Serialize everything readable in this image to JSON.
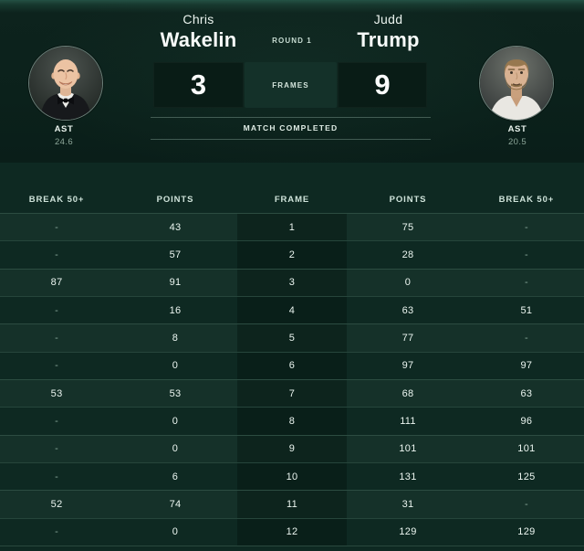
{
  "match": {
    "round": "ROUND 1",
    "frames_label": "FRAMES",
    "status": "MATCH COMPLETED",
    "home": {
      "first_name": "Chris",
      "last_name": "Wakelin",
      "frames_won": "3",
      "stat_label": "AST",
      "stat_value": "24.6"
    },
    "away": {
      "first_name": "Judd",
      "last_name": "Trump",
      "frames_won": "9",
      "stat_label": "AST",
      "stat_value": "20.5"
    }
  },
  "table": {
    "columns": [
      "BREAK 50+",
      "POINTS",
      "FRAME",
      "POINTS",
      "BREAK 50+"
    ],
    "rows": [
      [
        "-",
        "43",
        "1",
        "75",
        "-"
      ],
      [
        "-",
        "57",
        "2",
        "28",
        "-"
      ],
      [
        "87",
        "91",
        "3",
        "0",
        "-"
      ],
      [
        "-",
        "16",
        "4",
        "63",
        "51"
      ],
      [
        "-",
        "8",
        "5",
        "77",
        "-"
      ],
      [
        "-",
        "0",
        "6",
        "97",
        "97"
      ],
      [
        "53",
        "53",
        "7",
        "68",
        "63"
      ],
      [
        "-",
        "0",
        "8",
        "111",
        "96"
      ],
      [
        "-",
        "0",
        "9",
        "101",
        "101"
      ],
      [
        "-",
        "6",
        "10",
        "131",
        "125"
      ],
      [
        "52",
        "74",
        "11",
        "31",
        "-"
      ],
      [
        "-",
        "0",
        "12",
        "129",
        "129"
      ]
    ]
  },
  "colors": {
    "page_bg": "#0e2922",
    "header_bg": "#0b211b",
    "score_box_bg": "#091c16",
    "frames_box_bg": "#143129",
    "frame_column_overlay": "rgba(2,19,14,0.42)",
    "divider": "rgba(170,215,195,0.16)",
    "text_primary": "#f7fbf9",
    "text_muted": "#8da79a"
  }
}
